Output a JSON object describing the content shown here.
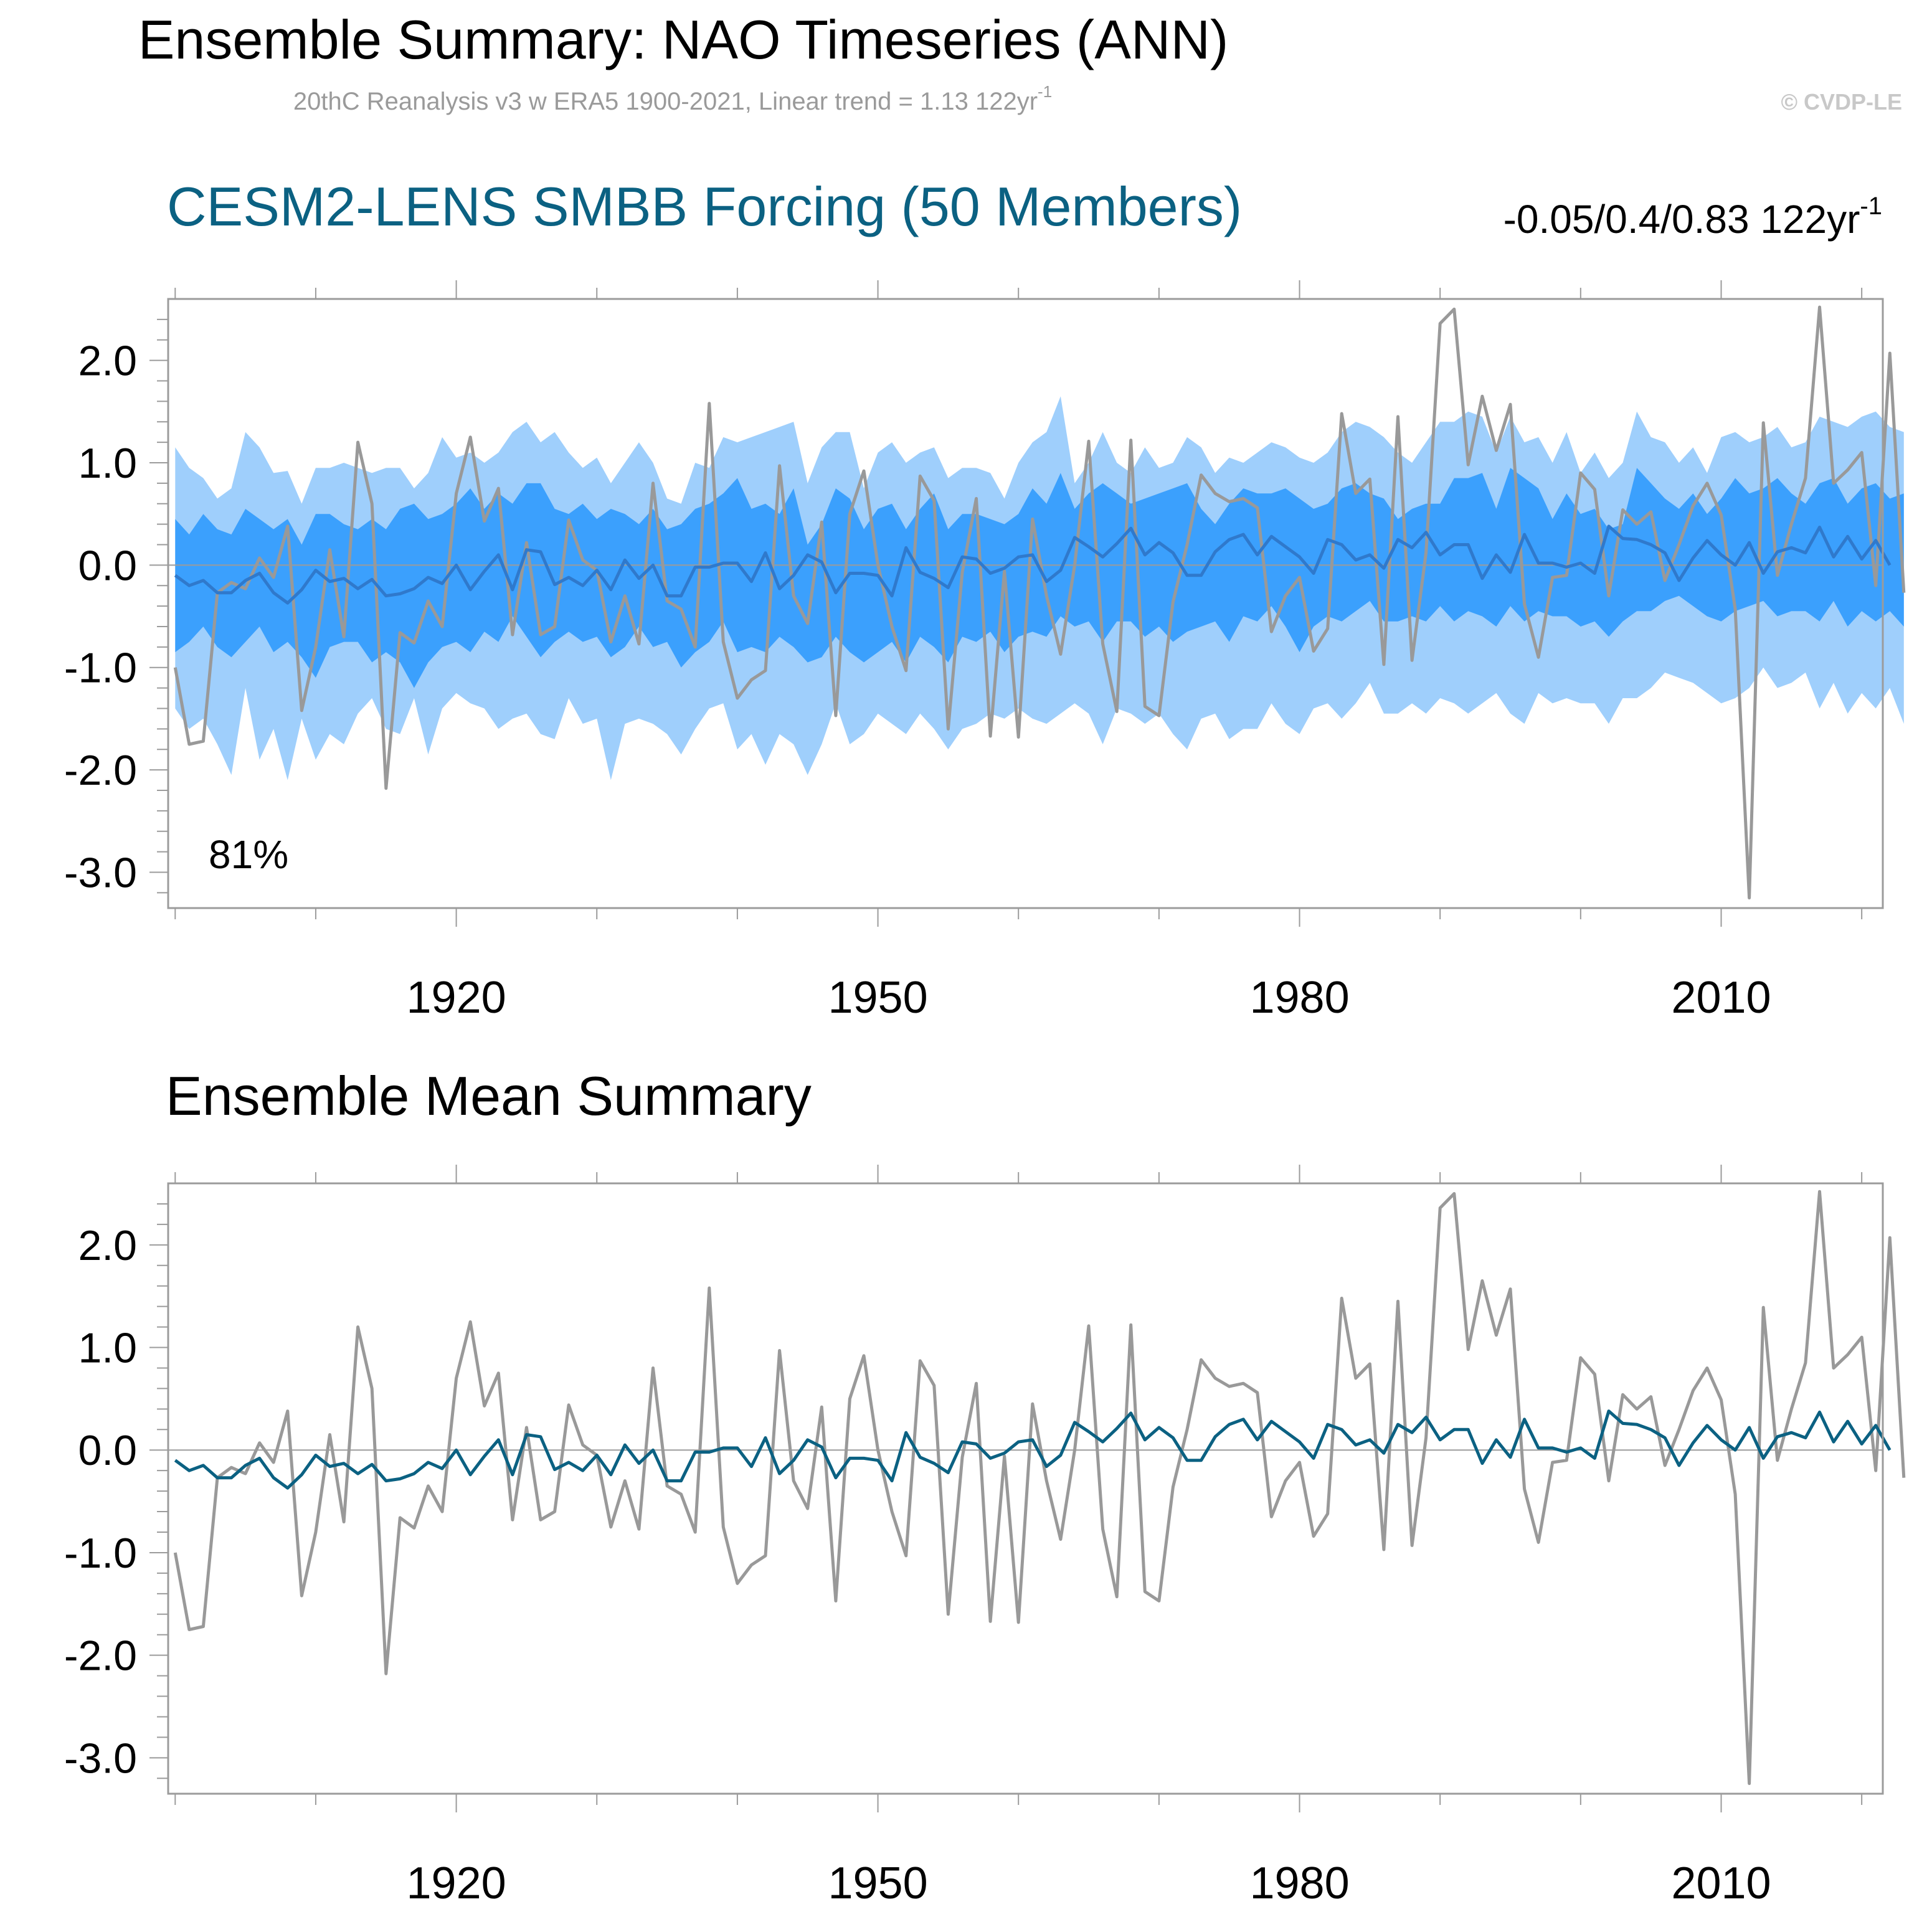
{
  "figure": {
    "title": "Ensemble Summary: NAO Timeseries (ANN)",
    "subtitle": "20thC Reanalysis v3 w ERA5 1900-2021, Linear trend = 1.13 122yr",
    "subtitle_sup": "-1",
    "credit": "© CVDP-LE"
  },
  "colors": {
    "outer_band": "#9fcffc",
    "inner_band": "#3ba0fd",
    "ens_mean_top": "#2f79cc",
    "ens_mean_bottom": "#0b6182",
    "observed": "#999999",
    "zero_line": "#9b9b9b",
    "title_blue": "#0b6182"
  },
  "chart_data": [
    {
      "type": "line",
      "title": "CESM2-LENS SMBB Forcing (50 Members)",
      "trend_label": "-0.05/0.4/0.83 122yr",
      "trend_sup": "-1",
      "annotation": "81%",
      "xlim": [
        1899.5,
        2021.5
      ],
      "ylim": [
        -3.35,
        2.6
      ],
      "xticks": [
        1920,
        1950,
        1980,
        2010
      ],
      "xtick_labels": [
        "1920",
        "1950",
        "1980",
        "2010"
      ],
      "yticks": [
        2.0,
        1.0,
        0.0,
        -1.0,
        -2.0,
        -3.0
      ],
      "ytick_labels": [
        "2.0",
        "1.0",
        "0.0",
        "-1.0",
        "-2.0",
        "-3.0"
      ],
      "x_start": 1900,
      "bands": {
        "outer_upper": [
          1.15,
          0.95,
          0.85,
          0.65,
          0.75,
          1.3,
          1.15,
          0.9,
          0.92,
          0.6,
          0.95,
          0.95,
          1.0,
          0.95,
          0.9,
          0.95,
          0.95,
          0.75,
          0.9,
          1.25,
          1.05,
          1.1,
          1.0,
          1.1,
          1.3,
          1.4,
          1.2,
          1.3,
          1.1,
          0.95,
          1.05,
          0.8,
          1.0,
          1.2,
          1.0,
          0.65,
          0.6,
          1.0,
          0.95,
          1.25,
          1.2,
          1.25,
          1.3,
          1.35,
          1.4,
          0.8,
          1.15,
          1.3,
          1.3,
          0.75,
          1.1,
          1.2,
          1.0,
          1.1,
          1.15,
          0.85,
          0.95,
          0.95,
          0.9,
          0.65,
          1.0,
          1.2,
          1.3,
          1.65,
          0.8,
          1.0,
          1.3,
          1.0,
          0.9,
          1.15,
          0.95,
          1.0,
          1.25,
          1.15,
          0.9,
          1.05,
          1.0,
          1.1,
          1.2,
          1.15,
          1.05,
          1.0,
          1.1,
          1.3,
          1.4,
          1.35,
          1.25,
          1.1,
          1.0,
          1.2,
          1.4,
          1.4,
          1.5,
          1.45,
          1.1,
          1.45,
          1.2,
          1.25,
          1.0,
          1.3,
          0.9,
          1.1,
          0.85,
          1.0,
          1.5,
          1.25,
          1.2,
          1.0,
          1.15,
          0.9,
          1.25,
          1.3,
          1.2,
          1.25,
          1.35,
          1.15,
          1.2,
          1.45,
          1.4,
          1.35,
          1.45,
          1.5,
          1.35,
          1.3
        ],
        "outer_lower": [
          -1.4,
          -1.6,
          -1.5,
          -1.75,
          -2.05,
          -1.2,
          -1.9,
          -1.6,
          -2.1,
          -1.5,
          -1.9,
          -1.65,
          -1.75,
          -1.45,
          -1.3,
          -1.6,
          -1.65,
          -1.3,
          -1.85,
          -1.4,
          -1.25,
          -1.35,
          -1.4,
          -1.6,
          -1.5,
          -1.45,
          -1.65,
          -1.7,
          -1.3,
          -1.55,
          -1.5,
          -2.1,
          -1.55,
          -1.5,
          -1.55,
          -1.65,
          -1.85,
          -1.6,
          -1.4,
          -1.35,
          -1.8,
          -1.65,
          -1.95,
          -1.65,
          -1.75,
          -2.05,
          -1.75,
          -1.35,
          -1.75,
          -1.65,
          -1.45,
          -1.55,
          -1.65,
          -1.45,
          -1.6,
          -1.8,
          -1.6,
          -1.55,
          -1.45,
          -1.5,
          -1.4,
          -1.5,
          -1.55,
          -1.45,
          -1.35,
          -1.45,
          -1.75,
          -1.4,
          -1.45,
          -1.55,
          -1.45,
          -1.65,
          -1.8,
          -1.5,
          -1.45,
          -1.7,
          -1.6,
          -1.6,
          -1.35,
          -1.55,
          -1.65,
          -1.4,
          -1.35,
          -1.5,
          -1.35,
          -1.15,
          -1.45,
          -1.45,
          -1.35,
          -1.45,
          -1.3,
          -1.35,
          -1.45,
          -1.35,
          -1.25,
          -1.45,
          -1.55,
          -1.25,
          -1.35,
          -1.3,
          -1.35,
          -1.35,
          -1.55,
          -1.3,
          -1.3,
          -1.2,
          -1.05,
          -1.1,
          -1.15,
          -1.25,
          -1.35,
          -1.3,
          -1.2,
          -1.0,
          -1.2,
          -1.15,
          -1.05,
          -1.4,
          -1.15,
          -1.45,
          -1.25,
          -1.4,
          -1.2,
          -1.55
        ],
        "inner_upper": [
          0.45,
          0.3,
          0.5,
          0.35,
          0.3,
          0.55,
          0.45,
          0.35,
          0.45,
          0.2,
          0.5,
          0.5,
          0.4,
          0.35,
          0.45,
          0.35,
          0.55,
          0.6,
          0.45,
          0.5,
          0.6,
          0.75,
          0.55,
          0.7,
          0.6,
          0.8,
          0.8,
          0.55,
          0.5,
          0.6,
          0.45,
          0.55,
          0.5,
          0.4,
          0.55,
          0.35,
          0.4,
          0.55,
          0.6,
          0.7,
          0.85,
          0.55,
          0.6,
          0.5,
          0.75,
          0.2,
          0.4,
          0.75,
          0.65,
          0.35,
          0.55,
          0.6,
          0.35,
          0.55,
          0.7,
          0.35,
          0.5,
          0.5,
          0.45,
          0.4,
          0.5,
          0.75,
          0.6,
          0.9,
          0.55,
          0.7,
          0.8,
          0.7,
          0.6,
          0.65,
          0.7,
          0.75,
          0.8,
          0.55,
          0.4,
          0.6,
          0.75,
          0.7,
          0.7,
          0.75,
          0.65,
          0.55,
          0.6,
          0.75,
          0.8,
          0.7,
          0.65,
          0.45,
          0.55,
          0.6,
          0.6,
          0.85,
          0.85,
          0.9,
          0.55,
          0.95,
          0.85,
          0.75,
          0.45,
          0.7,
          0.5,
          0.55,
          0.35,
          0.4,
          0.95,
          0.8,
          0.65,
          0.55,
          0.7,
          0.5,
          0.65,
          0.85,
          0.7,
          0.75,
          0.85,
          0.7,
          0.6,
          0.8,
          0.85,
          0.6,
          0.75,
          0.8,
          0.65,
          0.7
        ],
        "inner_lower": [
          -0.85,
          -0.75,
          -0.6,
          -0.8,
          -0.9,
          -0.75,
          -0.6,
          -0.85,
          -0.75,
          -0.9,
          -1.1,
          -0.8,
          -0.75,
          -0.75,
          -0.95,
          -0.85,
          -0.95,
          -1.2,
          -0.95,
          -0.8,
          -0.75,
          -0.85,
          -0.65,
          -0.75,
          -0.5,
          -0.7,
          -0.9,
          -0.75,
          -0.65,
          -0.75,
          -0.7,
          -0.9,
          -0.8,
          -0.6,
          -0.8,
          -0.75,
          -1.0,
          -0.85,
          -0.75,
          -0.55,
          -0.85,
          -0.8,
          -0.85,
          -0.7,
          -0.8,
          -0.95,
          -0.9,
          -0.7,
          -0.85,
          -0.95,
          -0.85,
          -0.75,
          -0.95,
          -0.7,
          -0.8,
          -0.95,
          -0.7,
          -0.75,
          -0.65,
          -0.85,
          -0.7,
          -0.65,
          -0.7,
          -0.5,
          -0.6,
          -0.55,
          -0.75,
          -0.55,
          -0.55,
          -0.7,
          -0.6,
          -0.75,
          -0.65,
          -0.6,
          -0.55,
          -0.75,
          -0.5,
          -0.55,
          -0.4,
          -0.6,
          -0.85,
          -0.6,
          -0.5,
          -0.55,
          -0.45,
          -0.35,
          -0.55,
          -0.55,
          -0.5,
          -0.55,
          -0.4,
          -0.55,
          -0.45,
          -0.5,
          -0.6,
          -0.4,
          -0.55,
          -0.45,
          -0.5,
          -0.5,
          -0.6,
          -0.55,
          -0.7,
          -0.55,
          -0.45,
          -0.45,
          -0.35,
          -0.3,
          -0.4,
          -0.5,
          -0.55,
          -0.45,
          -0.4,
          -0.35,
          -0.5,
          -0.45,
          -0.45,
          -0.55,
          -0.35,
          -0.6,
          -0.45,
          -0.55,
          -0.45,
          -0.6
        ]
      },
      "ensemble_mean": [
        -0.1,
        -0.2,
        -0.15,
        -0.27,
        -0.27,
        -0.15,
        -0.08,
        -0.27,
        -0.37,
        -0.24,
        -0.05,
        -0.16,
        -0.13,
        -0.23,
        -0.14,
        -0.3,
        -0.28,
        -0.23,
        -0.12,
        -0.18,
        0.0,
        -0.24,
        -0.06,
        0.1,
        -0.24,
        0.15,
        0.13,
        -0.19,
        -0.12,
        -0.2,
        -0.05,
        -0.24,
        0.05,
        -0.13,
        0.0,
        -0.3,
        -0.3,
        -0.02,
        -0.02,
        0.02,
        0.02,
        -0.16,
        0.12,
        -0.23,
        -0.1,
        0.1,
        0.03,
        -0.27,
        -0.08,
        -0.08,
        -0.1,
        -0.3,
        0.17,
        -0.07,
        -0.13,
        -0.22,
        0.08,
        0.06,
        -0.08,
        -0.03,
        0.08,
        0.1,
        -0.16,
        -0.05,
        0.27,
        0.18,
        0.08,
        0.21,
        0.36,
        0.1,
        0.22,
        0.12,
        -0.1,
        -0.1,
        0.13,
        0.25,
        0.3,
        0.1,
        0.28,
        0.18,
        0.08,
        -0.08,
        0.25,
        0.2,
        0.05,
        0.1,
        -0.03,
        0.25,
        0.17,
        0.32,
        0.1,
        0.2,
        0.2,
        -0.13,
        0.1,
        -0.07,
        0.3,
        0.02,
        0.02,
        -0.02,
        0.02,
        -0.08,
        0.38,
        0.26,
        0.25,
        0.2,
        0.12,
        -0.15,
        0.07,
        0.24,
        0.1,
        0.0,
        0.22,
        -0.08,
        0.13,
        0.17,
        0.12,
        0.37,
        0.08,
        0.28,
        0.06,
        0.24,
        0.0
      ],
      "observed": [
        -1.0,
        -1.75,
        -1.72,
        -0.27,
        -0.17,
        -0.23,
        0.07,
        -0.12,
        0.38,
        -1.42,
        -0.8,
        0.15,
        -0.7,
        1.2,
        0.6,
        -2.18,
        -0.66,
        -0.76,
        -0.35,
        -0.6,
        0.7,
        1.25,
        0.43,
        0.75,
        -0.68,
        0.22,
        -0.68,
        -0.6,
        0.44,
        0.05,
        -0.05,
        -0.75,
        -0.3,
        -0.77,
        0.8,
        -0.35,
        -0.43,
        -0.8,
        1.58,
        -0.75,
        -1.3,
        -1.12,
        -1.03,
        0.97,
        -0.3,
        -0.57,
        0.42,
        -1.47,
        0.5,
        0.92,
        0.0,
        -0.6,
        -1.03,
        0.87,
        0.63,
        -1.6,
        -0.07,
        0.65,
        -1.67,
        -0.06,
        -1.68,
        0.45,
        -0.3,
        -0.87,
        0.0,
        1.21,
        -0.77,
        -1.43,
        1.22,
        -1.38,
        -1.47,
        -0.36,
        0.2,
        0.88,
        0.7,
        0.62,
        0.65,
        0.56,
        -0.65,
        -0.3,
        -0.12,
        -0.84,
        -0.62,
        1.48,
        0.7,
        0.84,
        -0.97,
        1.45,
        -0.93,
        0.12,
        2.36,
        2.5,
        0.98,
        1.65,
        1.12,
        1.57,
        -0.38,
        -0.9,
        -0.12,
        -0.1,
        0.9,
        0.74,
        -0.3,
        0.54,
        0.4,
        0.52,
        -0.15,
        0.2,
        0.58,
        0.8,
        0.49,
        -0.43,
        -3.25,
        1.39,
        -0.1,
        0.4,
        0.85,
        2.52,
        0.8,
        0.93,
        1.1,
        -0.2,
        2.07,
        -0.27
      ]
    },
    {
      "type": "line",
      "title": "Ensemble Mean Summary",
      "xlim": [
        1899.5,
        2021.5
      ],
      "ylim": [
        -3.35,
        2.6
      ],
      "xticks": [
        1920,
        1950,
        1980,
        2010
      ],
      "xtick_labels": [
        "1920",
        "1950",
        "1980",
        "2010"
      ],
      "yticks": [
        2.0,
        1.0,
        0.0,
        -1.0,
        -2.0,
        -3.0
      ],
      "ytick_labels": [
        "2.0",
        "1.0",
        "0.0",
        "-1.0",
        "-2.0",
        "-3.0"
      ],
      "x_start": 1900,
      "series_note": "same ensemble mean and observed series as panel 1"
    }
  ]
}
